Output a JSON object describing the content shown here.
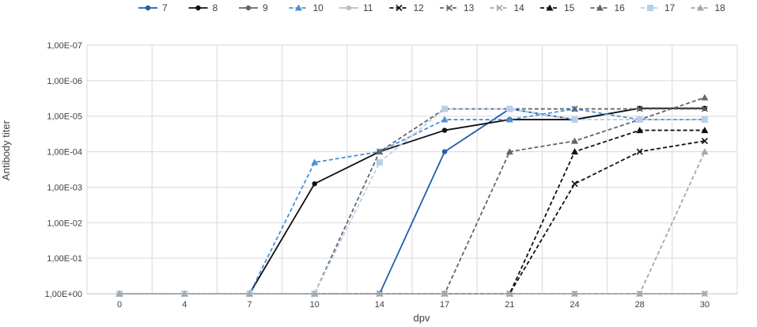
{
  "chart_data": {
    "type": "line",
    "xlabel": "dpv",
    "ylabel": "Antibody titer",
    "categories": [
      "0",
      "4",
      "7",
      "10",
      "14",
      "17",
      "21",
      "24",
      "28",
      "30"
    ],
    "y_scale": "log",
    "ylim": [
      1,
      1e-07
    ],
    "y_ticks": [
      {
        "value": 1,
        "label": "1,00E+00"
      },
      {
        "value": 0.1,
        "label": "1,00E-01"
      },
      {
        "value": 0.01,
        "label": "1,00E-02"
      },
      {
        "value": 0.001,
        "label": "1,00E-03"
      },
      {
        "value": 0.0001,
        "label": "1,00E-04"
      },
      {
        "value": 1e-05,
        "label": "1,00E-05"
      },
      {
        "value": 1e-06,
        "label": "1,00E-06"
      },
      {
        "value": 1e-07,
        "label": "1,00E-07"
      }
    ],
    "grid": true,
    "legend_position": "top",
    "series": [
      {
        "name": "7",
        "color": "#1f5fa8",
        "dash": "solid",
        "marker": "circle",
        "values": [
          1,
          1,
          1,
          1,
          1,
          0.0001,
          6.25e-06,
          1.25e-05,
          6e-06,
          6e-06
        ]
      },
      {
        "name": "8",
        "color": "#111111",
        "dash": "solid",
        "marker": "circle",
        "values": [
          1,
          1,
          1,
          0.0008,
          0.0001,
          2.5e-05,
          1.25e-05,
          1.25e-05,
          6e-06,
          6e-06
        ]
      },
      {
        "name": "9",
        "color": "#666666",
        "dash": "solid",
        "marker": "circle",
        "values": [
          1,
          1,
          1,
          1,
          1,
          1,
          1,
          1,
          1,
          1
        ]
      },
      {
        "name": "10",
        "color": "#4a8fd4",
        "dash": "dashed",
        "marker": "triangle",
        "values": [
          1,
          1,
          1,
          0.0002,
          0.0001,
          1.25e-05,
          1.25e-05,
          6.25e-06,
          1.25e-05,
          1.25e-05
        ]
      },
      {
        "name": "11",
        "color": "#bdbdbd",
        "dash": "solid",
        "marker": "circle",
        "values": [
          1,
          1,
          1,
          1,
          1,
          1,
          1,
          1,
          1,
          1
        ]
      },
      {
        "name": "12",
        "color": "#111111",
        "dash": "dashed",
        "marker": "x",
        "values": [
          1,
          1,
          1,
          1,
          1,
          1,
          1,
          0.0008,
          0.0001,
          5e-05
        ]
      },
      {
        "name": "13",
        "color": "#666666",
        "dash": "dashed",
        "marker": "x",
        "values": [
          1,
          1,
          1,
          1,
          0.0001,
          6.25e-06,
          6.25e-06,
          6.25e-06,
          6.25e-06,
          6.25e-06
        ]
      },
      {
        "name": "14",
        "color": "#a8a8a8",
        "dash": "dashed",
        "marker": "x",
        "values": [
          1,
          1,
          1,
          1,
          1,
          1,
          1,
          1,
          1,
          1
        ]
      },
      {
        "name": "15",
        "color": "#111111",
        "dash": "dashed",
        "marker": "triangle",
        "values": [
          1,
          1,
          1,
          1,
          1,
          1,
          1,
          0.0001,
          2.5e-05,
          2.5e-05
        ]
      },
      {
        "name": "16",
        "color": "#666666",
        "dash": "dashed",
        "marker": "triangle",
        "values": [
          1,
          1,
          1,
          1,
          1,
          1,
          0.0001,
          5e-05,
          1.25e-05,
          3e-06
        ]
      },
      {
        "name": "17",
        "color": "#b6d0ec",
        "dash": "dashed",
        "marker": "square",
        "values": [
          1,
          1,
          1,
          1,
          0.0002,
          6.25e-06,
          6.25e-06,
          1.25e-05,
          1.25e-05,
          1.25e-05
        ]
      },
      {
        "name": "18",
        "color": "#a8a8a8",
        "dash": "dashed",
        "marker": "triangle",
        "values": [
          1,
          1,
          1,
          1,
          1,
          1,
          1,
          1,
          1,
          0.0001
        ]
      }
    ]
  }
}
